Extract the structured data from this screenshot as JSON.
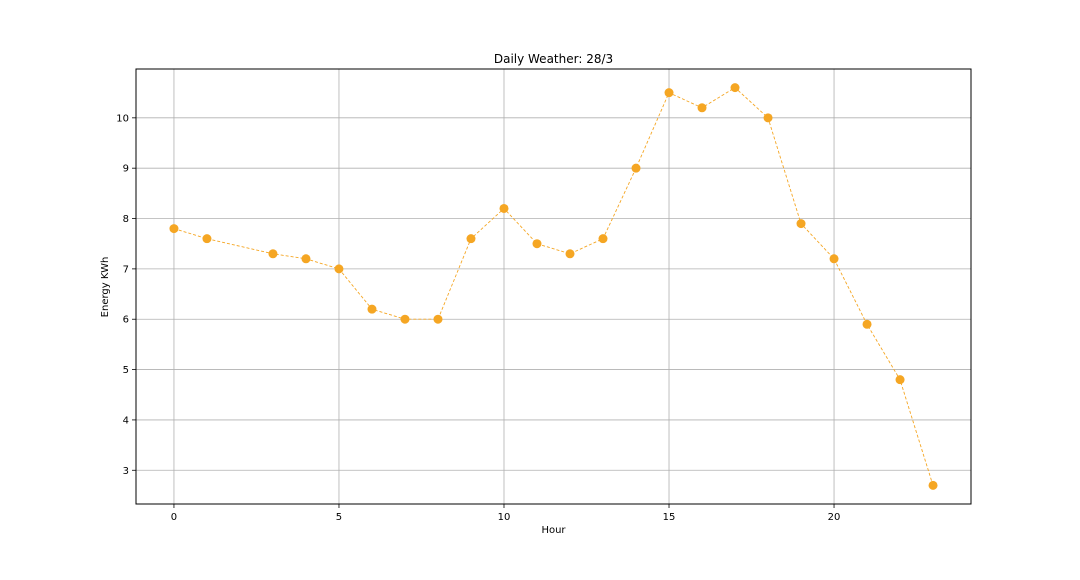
{
  "chart_data": {
    "type": "line",
    "title": "Daily Weather: 28/3",
    "xlabel": "Hour",
    "ylabel": "Energy KWh",
    "xlim": [
      -1.15,
      24.15
    ],
    "ylim": [
      2.33,
      10.97
    ],
    "xticks": [
      0,
      5,
      10,
      15,
      20
    ],
    "yticks": [
      3,
      4,
      5,
      6,
      7,
      8,
      9,
      10
    ],
    "grid": true,
    "legend": "none",
    "series": [
      {
        "color": "#f5a623",
        "marker": "circle",
        "line_style": "dashed",
        "x": [
          0,
          1,
          3,
          4,
          5,
          6,
          7,
          8,
          9,
          10,
          11,
          12,
          13,
          14,
          15,
          16,
          17,
          18,
          19,
          20,
          21,
          22,
          23
        ],
        "y": [
          7.8,
          7.6,
          7.3,
          7.2,
          7.0,
          6.2,
          6.0,
          6.0,
          7.6,
          8.2,
          7.5,
          7.3,
          7.6,
          9.0,
          10.5,
          10.2,
          10.6,
          10.0,
          7.9,
          7.2,
          5.9,
          4.8,
          2.7
        ]
      }
    ]
  }
}
